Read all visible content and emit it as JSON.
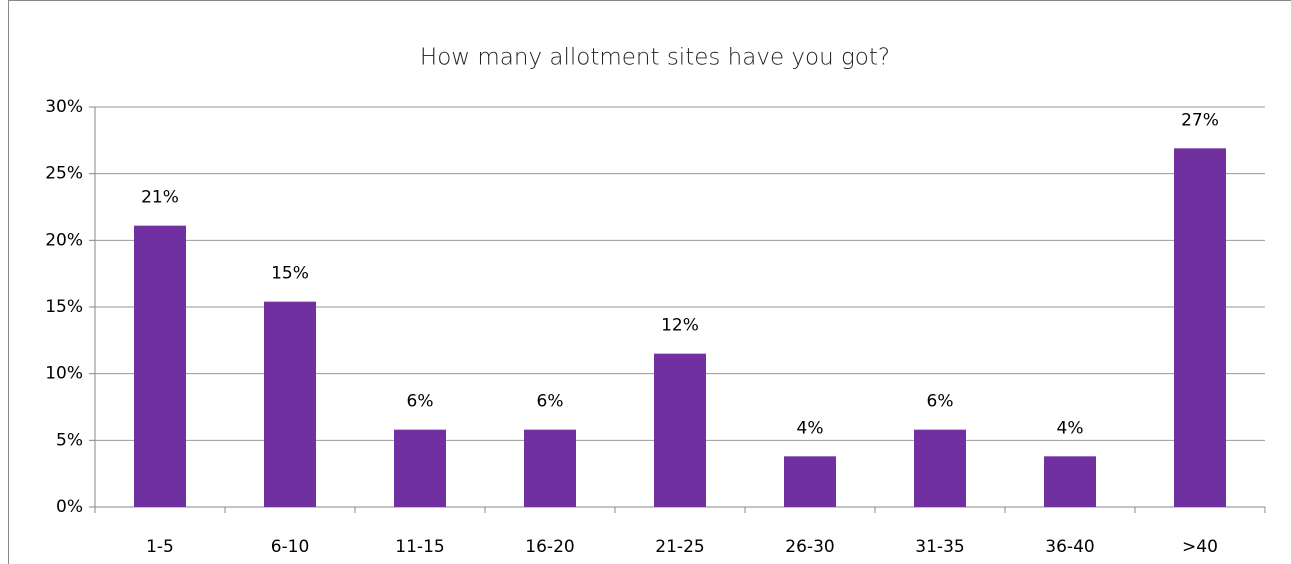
{
  "chart_data": {
    "type": "bar",
    "title": "How many allotment sites have you got?",
    "categories": [
      "1-5",
      "6-10",
      "11-15",
      "16-20",
      "21-25",
      "26-30",
      "31-35",
      "36-40",
      ">40"
    ],
    "values": [
      21.1,
      15.4,
      5.8,
      5.8,
      11.5,
      3.8,
      5.8,
      3.8,
      26.9
    ],
    "value_labels": [
      "21%",
      "15%",
      "6%",
      "6%",
      "12%",
      "4%",
      "6%",
      "4%",
      "27%"
    ],
    "color": "#7030a0",
    "ylim": [
      0,
      30
    ],
    "yticks": [
      {
        "value": 0,
        "label": "0%"
      },
      {
        "value": 5,
        "label": "5%"
      },
      {
        "value": 10,
        "label": "10%"
      },
      {
        "value": 15,
        "label": "15%"
      },
      {
        "value": 20,
        "label": "20%"
      },
      {
        "value": 25,
        "label": "25%"
      },
      {
        "value": 30,
        "label": "30%"
      }
    ],
    "grid": true
  }
}
